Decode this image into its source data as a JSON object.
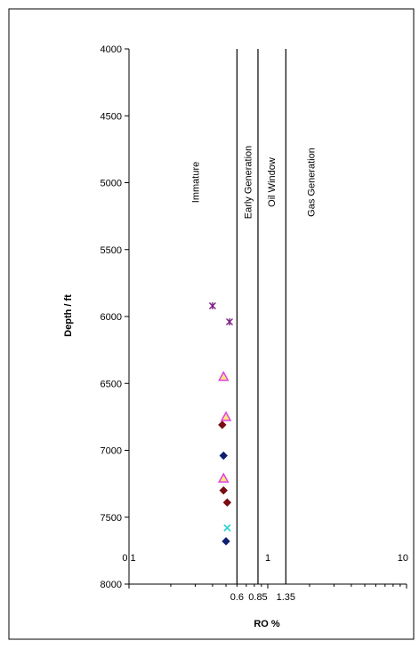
{
  "chart_data": {
    "type": "scatter",
    "title": "",
    "xlabel": "RO %",
    "ylabel": "Depth / ft",
    "xscale": "log",
    "xlim": [
      0.1,
      10
    ],
    "ylim": [
      4000,
      8000
    ],
    "y_inverted": true,
    "grid": false,
    "x_tick_labels": [
      "0.1",
      "1",
      "10"
    ],
    "y_tick_labels": [
      "4000",
      "4500",
      "5000",
      "5500",
      "6000",
      "6500",
      "7000",
      "7500",
      "8000"
    ],
    "boundaries": [
      {
        "value": 0.6,
        "label": "0.6"
      },
      {
        "value": 0.85,
        "label": "0.85"
      },
      {
        "value": 1.35,
        "label": "1.35"
      }
    ],
    "zones": [
      {
        "name": "Immature",
        "display": "Immature",
        "x_center": 0.3
      },
      {
        "name": "Early Generation",
        "display": "Early Generation",
        "x_center": 0.72
      },
      {
        "name": "Oil Window",
        "display": "Oil Window",
        "x_center": 1.06
      },
      {
        "name": "Gas Generation",
        "display": "Gas Generation",
        "x_center": 2.05
      }
    ],
    "series": [
      {
        "marker": "star",
        "color": "#7b1f86",
        "points": [
          {
            "x": 0.4,
            "y": 5920
          },
          {
            "x": 0.53,
            "y": 6040
          }
        ]
      },
      {
        "marker": "triangle",
        "color": "#e040e0",
        "fill": "#ffe680",
        "points": [
          {
            "x": 0.48,
            "y": 6450
          },
          {
            "x": 0.5,
            "y": 6750
          },
          {
            "x": 0.48,
            "y": 7210
          }
        ]
      },
      {
        "marker": "diamond",
        "color": "#7a0c14",
        "points": [
          {
            "x": 0.47,
            "y": 6810
          },
          {
            "x": 0.48,
            "y": 7300
          },
          {
            "x": 0.51,
            "y": 7390
          }
        ]
      },
      {
        "marker": "diamond",
        "color": "#10206e",
        "points": [
          {
            "x": 0.48,
            "y": 7040
          },
          {
            "x": 0.5,
            "y": 7680
          }
        ]
      },
      {
        "marker": "x",
        "color": "#35d2d8",
        "points": [
          {
            "x": 0.51,
            "y": 7580
          }
        ]
      }
    ]
  }
}
